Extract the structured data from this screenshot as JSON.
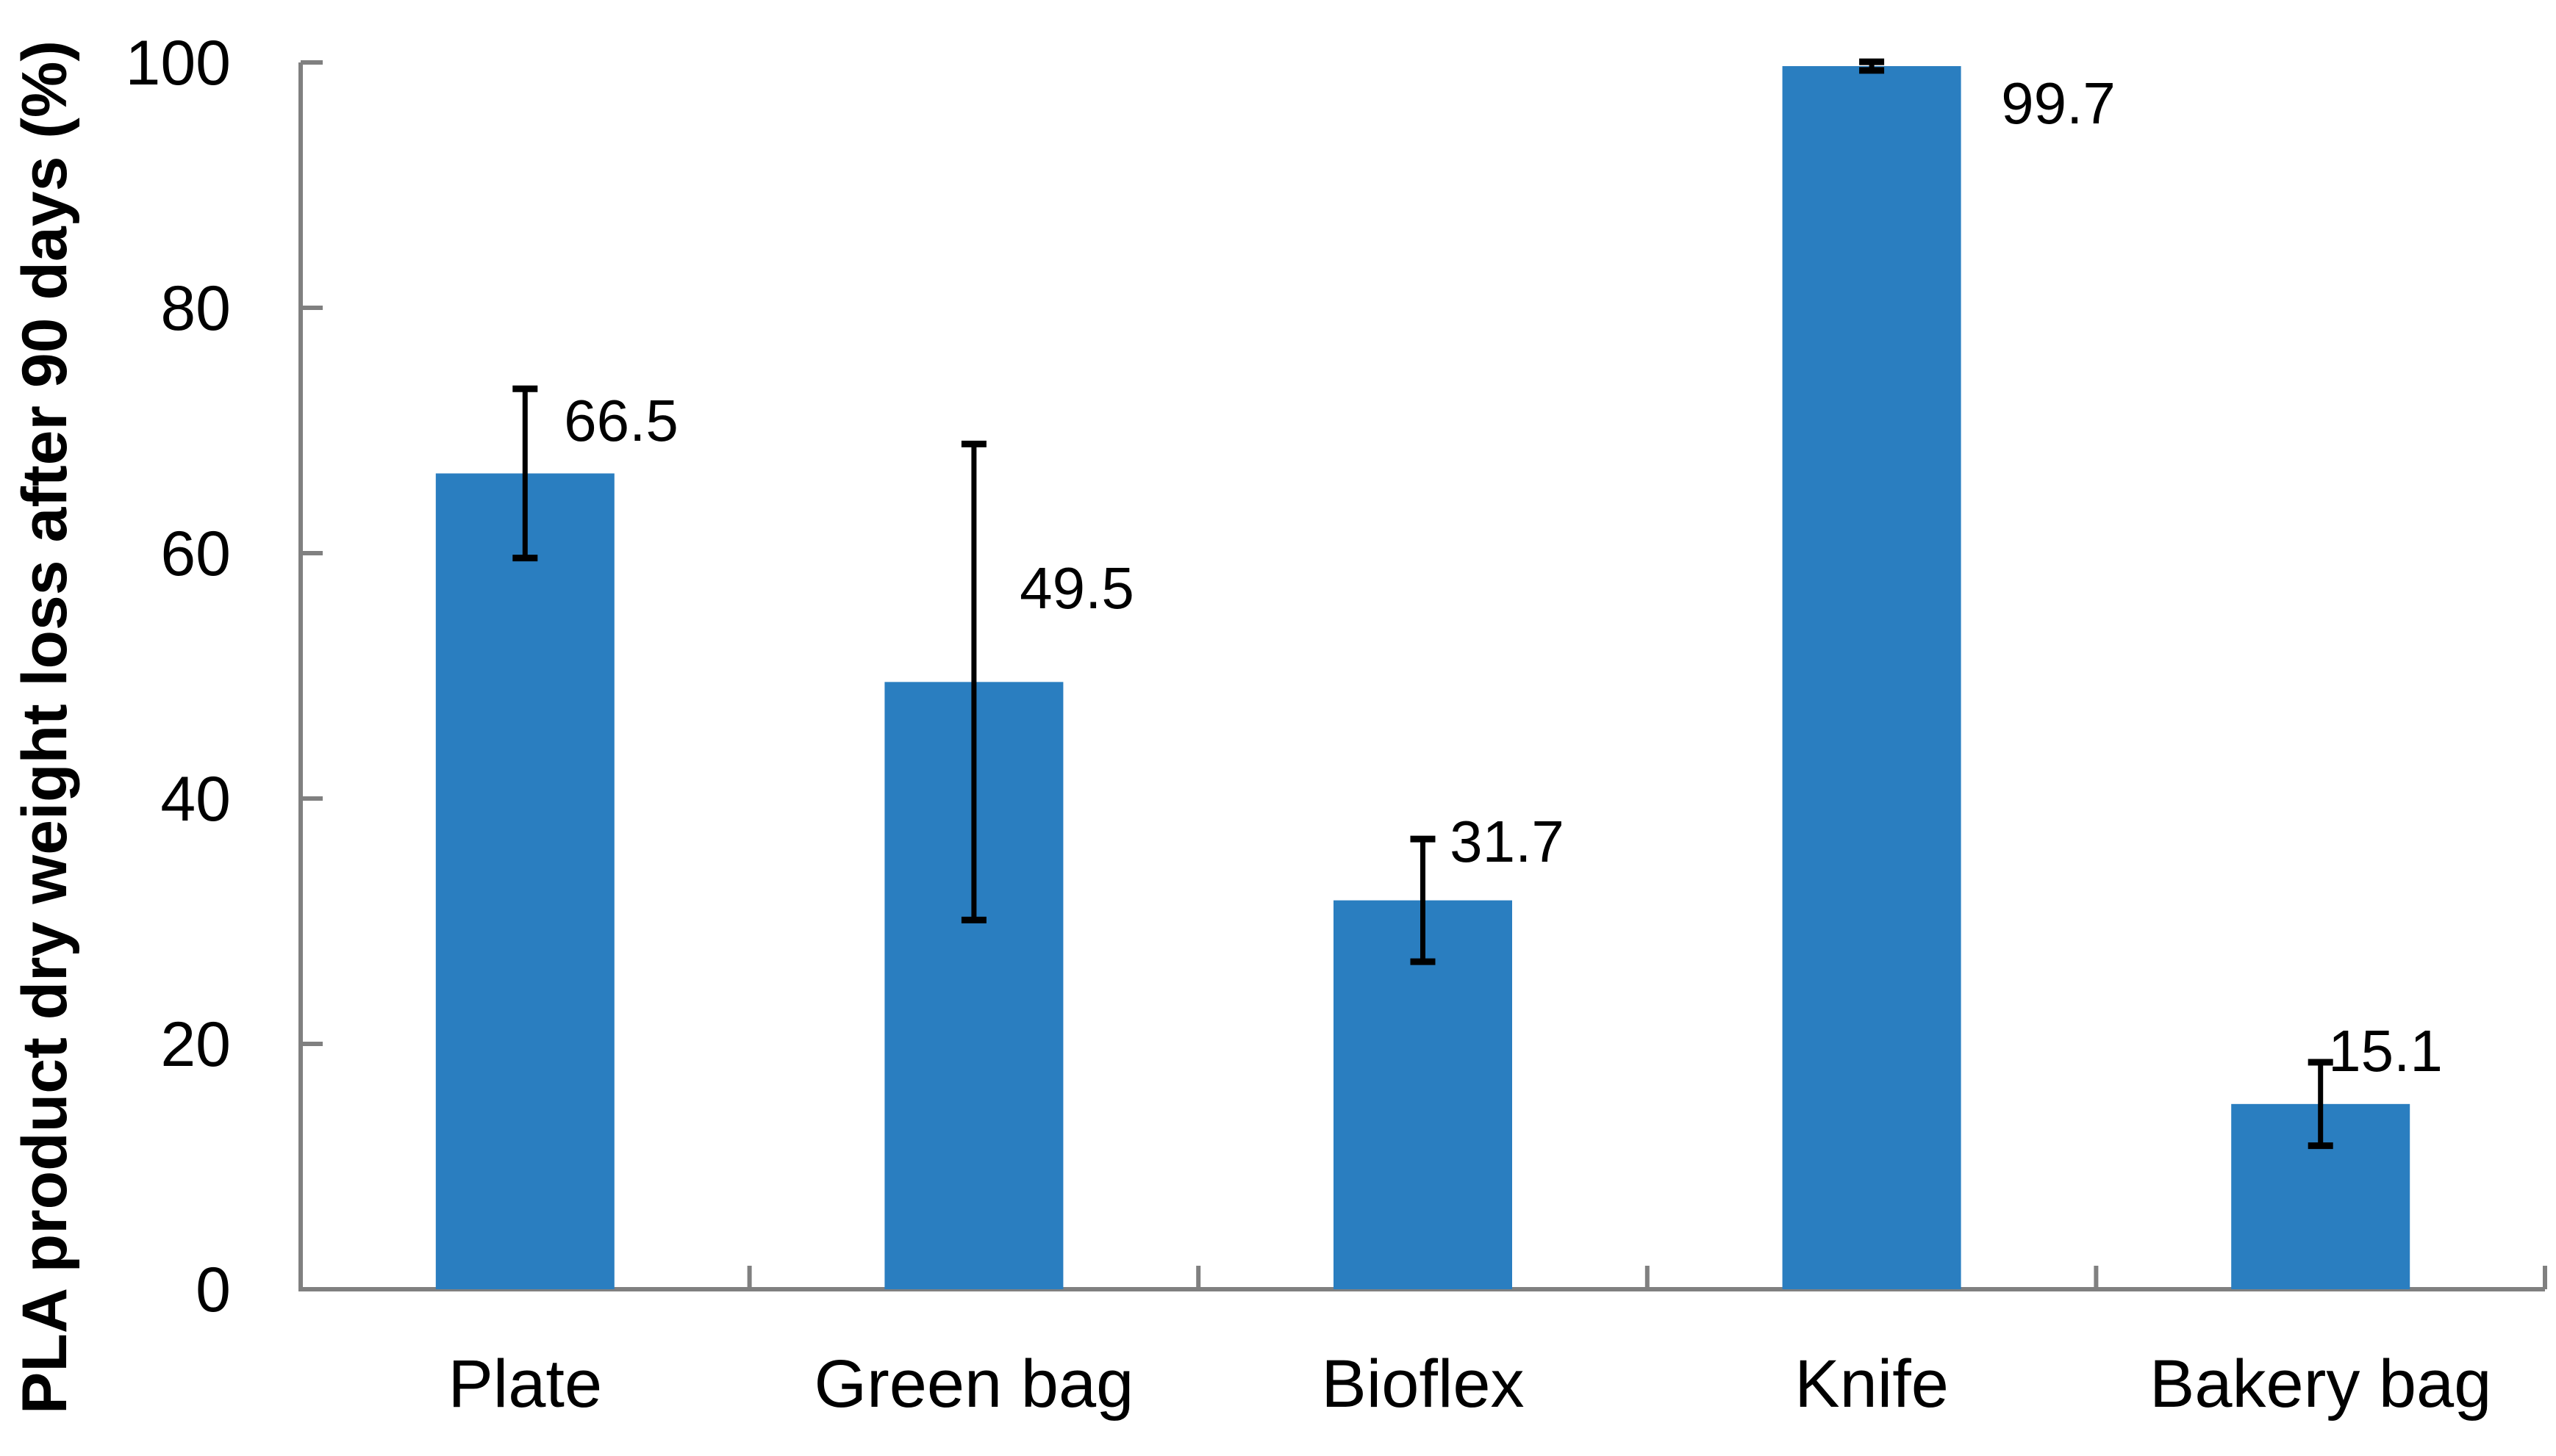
{
  "chart_data": {
    "type": "bar",
    "title": "",
    "ylabel": "PLA product dry weight loss after 90 days (%)",
    "xlabel": "",
    "categories": [
      "Plate",
      "Green bag",
      "Bioflex",
      "Knife",
      "Bakery bag"
    ],
    "values": [
      66.5,
      49.5,
      31.7,
      99.7,
      15.1
    ],
    "errors": [
      6.9,
      19.4,
      5.0,
      0.35,
      3.4
    ],
    "data_labels": [
      "66.5",
      "49.5",
      "31.7",
      "99.7",
      "15.1"
    ],
    "yticks": [
      0,
      20,
      40,
      60,
      80,
      100
    ],
    "ytick_labels": [
      "0",
      "20",
      "40",
      "60",
      "80",
      "100"
    ],
    "ylim": [
      0,
      100
    ],
    "grid": false,
    "legend": null,
    "bar_color": "#2a7ec0",
    "axis_color": "#808080",
    "error_bar_color": "#000000",
    "text_color": "#000000",
    "background_color": "#ffffff"
  }
}
